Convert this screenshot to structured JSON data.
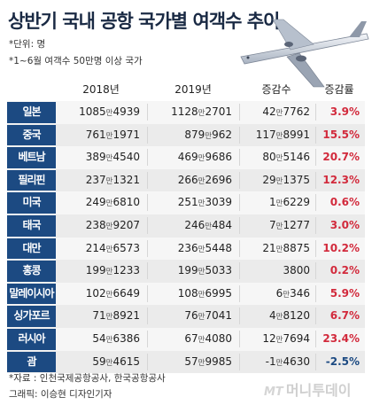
{
  "title": "상반기 국내 공항 국가별 여객수 추이",
  "notes": [
    "*단위: 명",
    "*1~6월 여객수 50만명 이상 국가"
  ],
  "columns": [
    "2018년",
    "2019년",
    "증감수",
    "증감률"
  ],
  "source": "*자료 : 인천국제공항공사, 한국공항공사",
  "credit": "그래픽: 이승현 디자인기자",
  "logo": {
    "prefix": "MT",
    "name": "머니투데이"
  },
  "unit_glyph": "만",
  "colors": {
    "category_bg": "#1c4a82",
    "rate_up": "#d22a3c",
    "rate_down": "#1c4a82",
    "row_light": "#f6f6f6",
    "row_dark": "#ebebeb"
  },
  "chart_data": {
    "type": "table",
    "title": "상반기 국내 공항 국가별 여객수 추이",
    "columns": [
      "2018년",
      "2019년",
      "증감수",
      "증감률"
    ],
    "rows": [
      {
        "country": "일본",
        "y2018": [
          "1085",
          "4939"
        ],
        "y2019": [
          "1128",
          "2701"
        ],
        "change": [
          "42",
          "7762"
        ],
        "rate": "3.9%",
        "dir": "up"
      },
      {
        "country": "중국",
        "y2018": [
          "761",
          "1971"
        ],
        "y2019": [
          "879",
          "962"
        ],
        "change": [
          "117",
          "8991"
        ],
        "rate": "15.5%",
        "dir": "up"
      },
      {
        "country": "베트남",
        "y2018": [
          "389",
          "4540"
        ],
        "y2019": [
          "469",
          "9686"
        ],
        "change": [
          "80",
          "5146"
        ],
        "rate": "20.7%",
        "dir": "up"
      },
      {
        "country": "필리핀",
        "y2018": [
          "237",
          "1321"
        ],
        "y2019": [
          "266",
          "2696"
        ],
        "change": [
          "29",
          "1375"
        ],
        "rate": "12.3%",
        "dir": "up"
      },
      {
        "country": "미국",
        "y2018": [
          "249",
          "6810"
        ],
        "y2019": [
          "251",
          "3039"
        ],
        "change": [
          "1",
          "6229"
        ],
        "rate": "0.6%",
        "dir": "up"
      },
      {
        "country": "태국",
        "y2018": [
          "238",
          "9207"
        ],
        "y2019": [
          "246",
          "484"
        ],
        "change": [
          "7",
          "1277"
        ],
        "rate": "3.0%",
        "dir": "up"
      },
      {
        "country": "대만",
        "y2018": [
          "214",
          "6573"
        ],
        "y2019": [
          "236",
          "5448"
        ],
        "change": [
          "21",
          "8875"
        ],
        "rate": "10.2%",
        "dir": "up"
      },
      {
        "country": "홍콩",
        "y2018": [
          "199",
          "1233"
        ],
        "y2019": [
          "199",
          "5033"
        ],
        "change": [
          "",
          "3800"
        ],
        "rate": "0.2%",
        "dir": "up"
      },
      {
        "country": "말레이시아",
        "y2018": [
          "102",
          "6649"
        ],
        "y2019": [
          "108",
          "6995"
        ],
        "change": [
          "6",
          "346"
        ],
        "rate": "5.9%",
        "dir": "up"
      },
      {
        "country": "싱가포르",
        "y2018": [
          "71",
          "8921"
        ],
        "y2019": [
          "76",
          "7041"
        ],
        "change": [
          "4",
          "8120"
        ],
        "rate": "6.7%",
        "dir": "up"
      },
      {
        "country": "러시아",
        "y2018": [
          "54",
          "6386"
        ],
        "y2019": [
          "67",
          "4080"
        ],
        "change": [
          "12",
          "7694"
        ],
        "rate": "23.4%",
        "dir": "up"
      },
      {
        "country": "괌",
        "y2018": [
          "59",
          "4615"
        ],
        "y2019": [
          "57",
          "9985"
        ],
        "change": [
          "-1",
          "4630"
        ],
        "rate": "-2.5%",
        "dir": "down"
      }
    ]
  }
}
